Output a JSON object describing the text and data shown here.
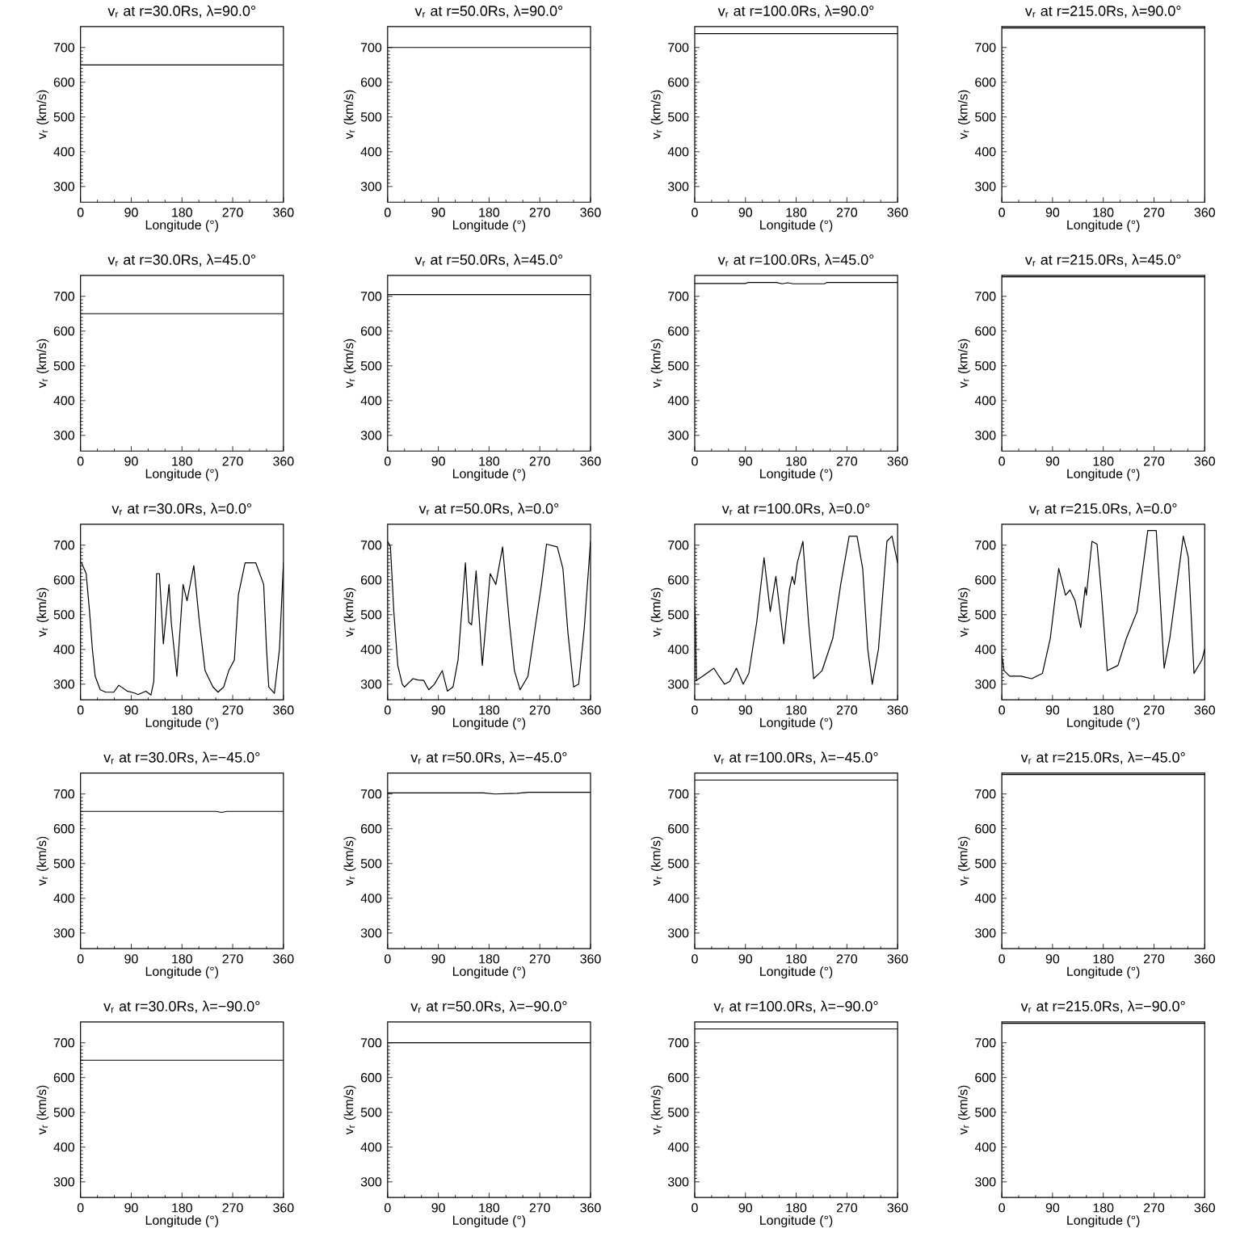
{
  "chart_data": [
    {
      "type": "line",
      "title": "v$_{r}$ at r=30.0Rs, λ=90.0°",
      "xlabel": "Longitude (°)",
      "ylabel": "v$_{r}$ (km/s)",
      "xlim": [
        0,
        360
      ],
      "ylim": [
        255,
        760
      ],
      "xticks": [
        0,
        90,
        180,
        270,
        360
      ],
      "yticks": [
        300,
        400,
        500,
        600,
        700
      ],
      "color": "#000000",
      "x": [
        0,
        360
      ],
      "values": [
        650,
        650
      ]
    },
    {
      "type": "line",
      "title": "v$_{r}$ at r=50.0Rs, λ=90.0°",
      "xlabel": "Longitude (°)",
      "ylabel": "v$_{r}$ (km/s)",
      "xlim": [
        0,
        360
      ],
      "ylim": [
        255,
        760
      ],
      "xticks": [
        0,
        90,
        180,
        270,
        360
      ],
      "yticks": [
        300,
        400,
        500,
        600,
        700
      ],
      "color": "#000000",
      "x": [
        0,
        360
      ],
      "values": [
        700,
        700
      ]
    },
    {
      "type": "line",
      "title": "v$_{r}$ at r=100.0Rs, λ=90.0°",
      "xlabel": "Longitude (°)",
      "ylabel": "v$_{r}$ (km/s)",
      "xlim": [
        0,
        360
      ],
      "ylim": [
        255,
        760
      ],
      "xticks": [
        0,
        90,
        180,
        270,
        360
      ],
      "yticks": [
        300,
        400,
        500,
        600,
        700
      ],
      "color": "#000000",
      "x": [
        0,
        360
      ],
      "values": [
        740,
        740
      ]
    },
    {
      "type": "line",
      "title": "v$_{r}$ at r=215.0Rs, λ=90.0°",
      "xlabel": "Longitude (°)",
      "ylabel": "v$_{r}$ (km/s)",
      "xlim": [
        0,
        360
      ],
      "ylim": [
        255,
        760
      ],
      "xticks": [
        0,
        90,
        180,
        270,
        360
      ],
      "yticks": [
        300,
        400,
        500,
        600,
        700
      ],
      "color": "#000000",
      "x": [
        0,
        360
      ],
      "values": [
        756,
        756
      ]
    },
    {
      "type": "line",
      "title": "v$_{r}$ at r=30.0Rs, λ=45.0°",
      "xlabel": "Longitude (°)",
      "ylabel": "v$_{r}$ (km/s)",
      "xlim": [
        0,
        360
      ],
      "ylim": [
        255,
        760
      ],
      "xticks": [
        0,
        90,
        180,
        270,
        360
      ],
      "yticks": [
        300,
        400,
        500,
        600,
        700
      ],
      "color": "#000000",
      "x": [
        0,
        360
      ],
      "values": [
        650,
        650
      ]
    },
    {
      "type": "line",
      "title": "v$_{r}$ at r=50.0Rs, λ=45.0°",
      "xlabel": "Longitude (°)",
      "ylabel": "v$_{r}$ (km/s)",
      "xlim": [
        0,
        360
      ],
      "ylim": [
        255,
        760
      ],
      "xticks": [
        0,
        90,
        180,
        270,
        360
      ],
      "yticks": [
        300,
        400,
        500,
        600,
        700
      ],
      "color": "#000000",
      "x": [
        0,
        360
      ],
      "values": [
        705,
        705
      ]
    },
    {
      "type": "line",
      "title": "v$_{r}$ at r=100.0Rs, λ=45.0°",
      "xlabel": "Longitude (°)",
      "ylabel": "v$_{r}$ (km/s)",
      "xlim": [
        0,
        360
      ],
      "ylim": [
        255,
        760
      ],
      "xticks": [
        0,
        90,
        180,
        270,
        360
      ],
      "yticks": [
        300,
        400,
        500,
        600,
        700
      ],
      "color": "#000000",
      "x": [
        0,
        90,
        95,
        145,
        155,
        165,
        175,
        230,
        235,
        360
      ],
      "values": [
        737,
        737,
        740,
        740,
        736,
        739,
        736,
        736,
        740,
        740
      ]
    },
    {
      "type": "line",
      "title": "v$_{r}$ at r=215.0Rs, λ=45.0°",
      "xlabel": "Longitude (°)",
      "ylabel": "v$_{r}$ (km/s)",
      "xlim": [
        0,
        360
      ],
      "ylim": [
        255,
        760
      ],
      "xticks": [
        0,
        90,
        180,
        270,
        360
      ],
      "yticks": [
        300,
        400,
        500,
        600,
        700
      ],
      "color": "#000000",
      "x": [
        0,
        360
      ],
      "values": [
        756,
        756
      ]
    },
    {
      "type": "line",
      "title": "v$_{r}$ at r=30.0Rs, λ=0.0°",
      "xlabel": "Longitude (°)",
      "ylabel": "v$_{r}$ (km/s)",
      "xlim": [
        0,
        360
      ],
      "ylim": [
        255,
        760
      ],
      "xticks": [
        0,
        90,
        180,
        270,
        360
      ],
      "yticks": [
        300,
        400,
        500,
        600,
        700
      ],
      "color": "#000000",
      "x": [
        0,
        2,
        10,
        16,
        21,
        26,
        35,
        45,
        59,
        68,
        83,
        97,
        102,
        116,
        125,
        130,
        135,
        140,
        147,
        157,
        161,
        171,
        182,
        189,
        201,
        211,
        221,
        235,
        244,
        254,
        263,
        273,
        280,
        292,
        311,
        325,
        330,
        334,
        344,
        353,
        360
      ],
      "values": [
        650,
        649,
        618,
        509,
        401,
        323,
        284,
        277,
        277,
        297,
        280,
        274,
        270,
        280,
        269,
        308,
        618,
        618,
        416,
        587,
        478,
        323,
        587,
        540,
        641,
        478,
        339,
        292,
        277,
        292,
        339,
        370,
        556,
        649,
        649,
        587,
        401,
        292,
        274,
        401,
        649
      ]
    },
    {
      "type": "line",
      "title": "v$_{r}$ at r=50.0Rs, λ=0.0°",
      "xlabel": "Longitude (°)",
      "ylabel": "v$_{r}$ (km/s)",
      "xlim": [
        0,
        360
      ],
      "ylim": [
        255,
        760
      ],
      "xticks": [
        0,
        90,
        180,
        270,
        360
      ],
      "yticks": [
        300,
        400,
        500,
        600,
        700
      ],
      "color": "#000000",
      "x": [
        0,
        5,
        11,
        18,
        26,
        30,
        45,
        54,
        64,
        73,
        83,
        97,
        106,
        116,
        125,
        138,
        144,
        149,
        157,
        168,
        182,
        192,
        204,
        216,
        225,
        235,
        249,
        263,
        273,
        282,
        301,
        311,
        320,
        330,
        339,
        349,
        360
      ],
      "values": [
        711,
        695,
        509,
        354,
        300,
        292,
        316,
        312,
        311,
        284,
        300,
        339,
        280,
        292,
        370,
        649,
        478,
        471,
        626,
        354,
        618,
        587,
        695,
        478,
        339,
        284,
        323,
        478,
        587,
        703,
        695,
        633,
        447,
        292,
        300,
        463,
        711
      ]
    },
    {
      "type": "line",
      "title": "v$_{r}$ at r=100.0Rs, λ=0.0°",
      "xlabel": "Longitude (°)",
      "ylabel": "v$_{r}$ (km/s)",
      "xlim": [
        0,
        360
      ],
      "ylim": [
        255,
        760
      ],
      "xticks": [
        0,
        90,
        180,
        270,
        360
      ],
      "yticks": [
        300,
        400,
        500,
        600,
        700
      ],
      "color": "#000000",
      "x": [
        0,
        1,
        3,
        14,
        34,
        43,
        53,
        62,
        74,
        86,
        96,
        110,
        123,
        134,
        144,
        158,
        168,
        173,
        177,
        182,
        192,
        202,
        211,
        226,
        245,
        259,
        274,
        288,
        298,
        307,
        315,
        326,
        341,
        350,
        358,
        360
      ],
      "values": [
        525,
        494,
        311,
        323,
        346,
        323,
        300,
        308,
        346,
        300,
        331,
        478,
        664,
        509,
        610,
        416,
        571,
        610,
        587,
        649,
        711,
        478,
        316,
        339,
        432,
        587,
        726,
        726,
        633,
        401,
        300,
        401,
        711,
        726,
        664,
        649
      ]
    },
    {
      "type": "line",
      "title": "v$_{r}$ at r=215.0Rs, λ=0.0°",
      "xlabel": "Longitude (°)",
      "ylabel": "v$_{r}$ (km/s)",
      "xlim": [
        0,
        360
      ],
      "ylim": [
        255,
        760
      ],
      "xticks": [
        0,
        90,
        180,
        270,
        360
      ],
      "yticks": [
        300,
        400,
        500,
        600,
        700
      ],
      "color": "#000000",
      "x": [
        0,
        4,
        14,
        34,
        53,
        72,
        86,
        101,
        113,
        121,
        130,
        140,
        148,
        150,
        160,
        169,
        177,
        187,
        206,
        221,
        240,
        259,
        274,
        288,
        298,
        312,
        322,
        331,
        341,
        355,
        360
      ],
      "values": [
        385,
        339,
        323,
        323,
        316,
        331,
        432,
        633,
        556,
        571,
        540,
        463,
        579,
        556,
        711,
        703,
        556,
        339,
        354,
        432,
        509,
        742,
        742,
        346,
        432,
        602,
        726,
        664,
        331,
        370,
        401
      ]
    },
    {
      "type": "line",
      "title": "v$_{r}$ at r=30.0Rs, λ=−45.0°",
      "xlabel": "Longitude (°)",
      "ylabel": "v$_{r}$ (km/s)",
      "xlim": [
        0,
        360
      ],
      "ylim": [
        255,
        760
      ],
      "xticks": [
        0,
        90,
        180,
        270,
        360
      ],
      "yticks": [
        300,
        400,
        500,
        600,
        700
      ],
      "color": "#000000",
      "x": [
        0,
        240,
        250,
        260,
        360
      ],
      "values": [
        650,
        650,
        647,
        650,
        650
      ]
    },
    {
      "type": "line",
      "title": "v$_{r}$ at r=50.0Rs, λ=−45.0°",
      "xlabel": "Longitude (°)",
      "ylabel": "v$_{r}$ (km/s)",
      "xlim": [
        0,
        360
      ],
      "ylim": [
        255,
        760
      ],
      "xticks": [
        0,
        90,
        180,
        270,
        360
      ],
      "yticks": [
        300,
        400,
        500,
        600,
        700
      ],
      "color": "#000000",
      "x": [
        0,
        170,
        190,
        230,
        250,
        360
      ],
      "values": [
        703,
        703,
        700,
        702,
        705,
        705
      ]
    },
    {
      "type": "line",
      "title": "v$_{r}$ at r=100.0Rs, λ=−45.0°",
      "xlabel": "Longitude (°)",
      "ylabel": "v$_{r}$ (km/s)",
      "xlim": [
        0,
        360
      ],
      "ylim": [
        255,
        760
      ],
      "xticks": [
        0,
        90,
        180,
        270,
        360
      ],
      "yticks": [
        300,
        400,
        500,
        600,
        700
      ],
      "color": "#000000",
      "x": [
        0,
        360
      ],
      "values": [
        740,
        740
      ]
    },
    {
      "type": "line",
      "title": "v$_{r}$ at r=215.0Rs, λ=−45.0°",
      "xlabel": "Longitude (°)",
      "ylabel": "v$_{r}$ (km/s)",
      "xlim": [
        0,
        360
      ],
      "ylim": [
        255,
        760
      ],
      "xticks": [
        0,
        90,
        180,
        270,
        360
      ],
      "yticks": [
        300,
        400,
        500,
        600,
        700
      ],
      "color": "#000000",
      "x": [
        0,
        360
      ],
      "values": [
        756,
        756
      ]
    },
    {
      "type": "line",
      "title": "v$_{r}$ at r=30.0Rs, λ=−90.0°",
      "xlabel": "Longitude (°)",
      "ylabel": "v$_{r}$ (km/s)",
      "xlim": [
        0,
        360
      ],
      "ylim": [
        255,
        760
      ],
      "xticks": [
        0,
        90,
        180,
        270,
        360
      ],
      "yticks": [
        300,
        400,
        500,
        600,
        700
      ],
      "color": "#000000",
      "x": [
        0,
        360
      ],
      "values": [
        650,
        650
      ]
    },
    {
      "type": "line",
      "title": "v$_{r}$ at r=50.0Rs, λ=−90.0°",
      "xlabel": "Longitude (°)",
      "ylabel": "v$_{r}$ (km/s)",
      "xlim": [
        0,
        360
      ],
      "ylim": [
        255,
        760
      ],
      "xticks": [
        0,
        90,
        180,
        270,
        360
      ],
      "yticks": [
        300,
        400,
        500,
        600,
        700
      ],
      "color": "#000000",
      "x": [
        0,
        360
      ],
      "values": [
        700,
        700
      ]
    },
    {
      "type": "line",
      "title": "v$_{r}$ at r=100.0Rs, λ=−90.0°",
      "xlabel": "Longitude (°)",
      "ylabel": "v$_{r}$ (km/s)",
      "xlim": [
        0,
        360
      ],
      "ylim": [
        255,
        760
      ],
      "xticks": [
        0,
        90,
        180,
        270,
        360
      ],
      "yticks": [
        300,
        400,
        500,
        600,
        700
      ],
      "color": "#000000",
      "x": [
        0,
        360
      ],
      "values": [
        740,
        740
      ]
    },
    {
      "type": "line",
      "title": "v$_{r}$ at r=215.0Rs, λ=−90.0°",
      "xlabel": "Longitude (°)",
      "ylabel": "v$_{r}$ (km/s)",
      "xlim": [
        0,
        360
      ],
      "ylim": [
        255,
        760
      ],
      "xticks": [
        0,
        90,
        180,
        270,
        360
      ],
      "yticks": [
        300,
        400,
        500,
        600,
        700
      ],
      "color": "#000000",
      "x": [
        0,
        360
      ],
      "values": [
        756,
        756
      ]
    }
  ]
}
